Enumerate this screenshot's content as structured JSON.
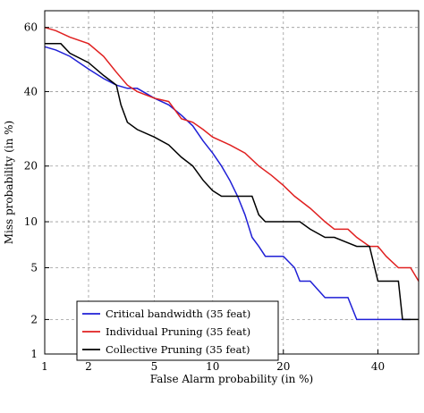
{
  "chart_data": {
    "type": "line",
    "title": "",
    "xlabel": "False Alarm probability (in %)",
    "ylabel": "Miss probability (in %)",
    "x_scale": "probit",
    "y_scale": "probit",
    "xlim": [
      1,
      50
    ],
    "ylim": [
      1,
      65
    ],
    "x_ticks": [
      1,
      2,
      5,
      10,
      20,
      40
    ],
    "x_tick_labels": [
      "1",
      "2",
      "5",
      "10",
      "20",
      "40"
    ],
    "y_ticks": [
      1,
      2,
      5,
      10,
      20,
      40,
      60
    ],
    "y_tick_labels": [
      "1",
      "2",
      "5",
      "10",
      "20",
      "40",
      "60"
    ],
    "grid": true,
    "legend_position": "bottom-left",
    "series": [
      {
        "name": "Critical bandwidth (35 feat)",
        "color": "#1f1fd6",
        "points": [
          [
            1,
            54
          ],
          [
            1.2,
            53
          ],
          [
            1.5,
            51
          ],
          [
            2,
            47
          ],
          [
            2.5,
            44
          ],
          [
            3,
            42
          ],
          [
            3.5,
            41
          ],
          [
            4,
            41
          ],
          [
            5,
            38
          ],
          [
            6,
            36
          ],
          [
            7,
            33
          ],
          [
            8,
            30
          ],
          [
            9,
            26
          ],
          [
            10,
            23
          ],
          [
            11,
            20
          ],
          [
            12,
            17
          ],
          [
            13,
            14
          ],
          [
            14,
            11
          ],
          [
            15,
            8
          ],
          [
            16,
            7
          ],
          [
            17,
            6
          ],
          [
            20,
            6
          ],
          [
            22,
            5
          ],
          [
            23,
            4
          ],
          [
            25,
            4
          ],
          [
            28,
            3
          ],
          [
            30,
            3
          ],
          [
            33,
            3
          ],
          [
            35,
            2
          ],
          [
            37,
            2
          ],
          [
            40,
            2
          ],
          [
            45,
            2
          ],
          [
            48,
            2
          ]
        ]
      },
      {
        "name": "Individual Pruning (35 feat)",
        "color": "#e02020",
        "points": [
          [
            1,
            60
          ],
          [
            1.2,
            59
          ],
          [
            1.5,
            57
          ],
          [
            2,
            55
          ],
          [
            2.5,
            51
          ],
          [
            3,
            46
          ],
          [
            3.5,
            42
          ],
          [
            4,
            40
          ],
          [
            5,
            38
          ],
          [
            6,
            37
          ],
          [
            7,
            32
          ],
          [
            8,
            31
          ],
          [
            9,
            29
          ],
          [
            10,
            27
          ],
          [
            12,
            25
          ],
          [
            14,
            23
          ],
          [
            16,
            20
          ],
          [
            18,
            18
          ],
          [
            20,
            16
          ],
          [
            22,
            14
          ],
          [
            25,
            12
          ],
          [
            28,
            10
          ],
          [
            30,
            9
          ],
          [
            33,
            9
          ],
          [
            35,
            8
          ],
          [
            38,
            7
          ],
          [
            40,
            7
          ],
          [
            42,
            6
          ],
          [
            45,
            5
          ],
          [
            48,
            5
          ],
          [
            50,
            4
          ]
        ]
      },
      {
        "name": "Collective Pruning (35 feat)",
        "color": "#000000",
        "points": [
          [
            1,
            55
          ],
          [
            1.3,
            55
          ],
          [
            1.5,
            52
          ],
          [
            2,
            49
          ],
          [
            2.5,
            45
          ],
          [
            3,
            42
          ],
          [
            3.2,
            36
          ],
          [
            3.5,
            31
          ],
          [
            4,
            29
          ],
          [
            5,
            27
          ],
          [
            6,
            25
          ],
          [
            7,
            22
          ],
          [
            8,
            20
          ],
          [
            9,
            17
          ],
          [
            10,
            15
          ],
          [
            11,
            14
          ],
          [
            12,
            14
          ],
          [
            13,
            14
          ],
          [
            15,
            14
          ],
          [
            16,
            11
          ],
          [
            17,
            10
          ],
          [
            20,
            10
          ],
          [
            23,
            10
          ],
          [
            25,
            9
          ],
          [
            28,
            8
          ],
          [
            30,
            8
          ],
          [
            35,
            7
          ],
          [
            38,
            7
          ],
          [
            40,
            4
          ],
          [
            42,
            4
          ],
          [
            45,
            4
          ],
          [
            46,
            2
          ],
          [
            48,
            2
          ],
          [
            50,
            2
          ]
        ]
      }
    ]
  }
}
